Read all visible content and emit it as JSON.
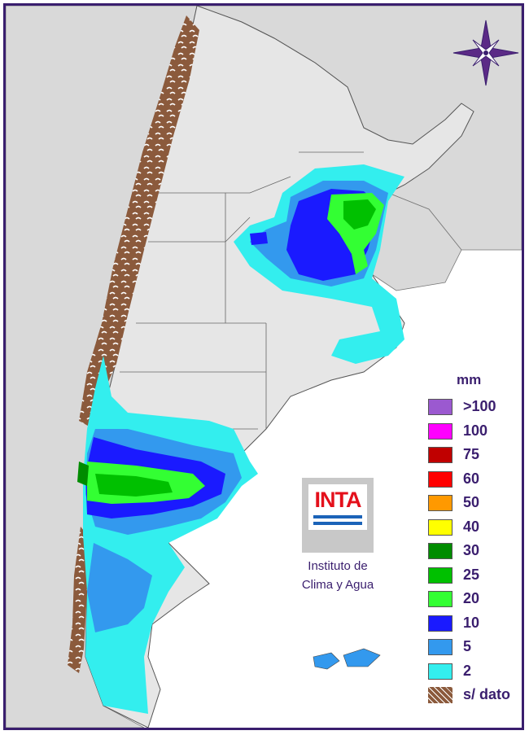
{
  "legend": {
    "unit": "mm",
    "items": [
      {
        "label": ">100",
        "color": "#9b59d0"
      },
      {
        "label": "100",
        "color": "#ff00ff"
      },
      {
        "label": "75",
        "color": "#c00000"
      },
      {
        "label": "60",
        "color": "#ff0000"
      },
      {
        "label": "50",
        "color": "#ff9900"
      },
      {
        "label": "40",
        "color": "#ffff00"
      },
      {
        "label": "30",
        "color": "#008c00"
      },
      {
        "label": "25",
        "color": "#00c000"
      },
      {
        "label": "20",
        "color": "#33ff33"
      },
      {
        "label": "10",
        "color": "#1a1aff"
      },
      {
        "label": "5",
        "color": "#3399ee"
      },
      {
        "label": "2",
        "color": "#33eeee"
      },
      {
        "label": "s/ dato",
        "color": "#8b5a3c"
      }
    ]
  },
  "logo": {
    "text": "INTA"
  },
  "institute": {
    "line1": "Instituto de",
    "line2": "Clima y Agua"
  },
  "colors": {
    "frame": "#3a1e6e",
    "neighbor_land": "#d9d9d9",
    "argentina_land": "#e6e6e6",
    "no_data": "#8b5a3c"
  }
}
